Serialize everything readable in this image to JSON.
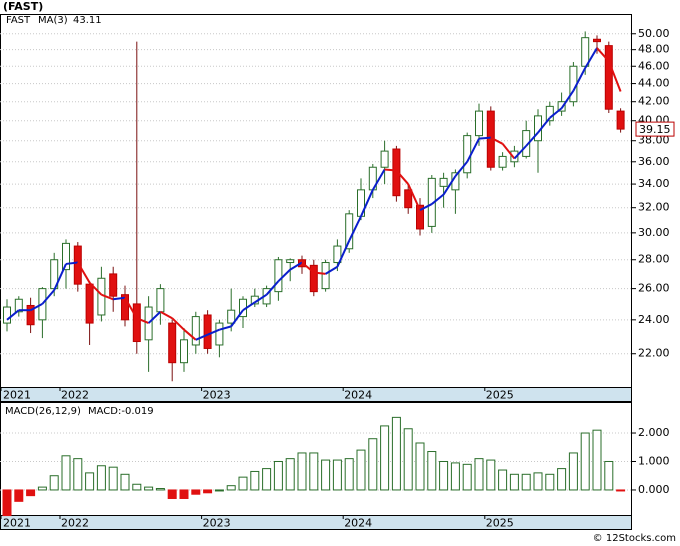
{
  "title": "(FAST)",
  "footer": "© 12Stocks.com",
  "chart_data": [
    {
      "type": "candlestick",
      "legend": {
        "symbol": "FAST",
        "ma_name": "MA(3)",
        "ma_value": 43.11
      },
      "categories": [
        "2021",
        null,
        null,
        null,
        null,
        "2022",
        null,
        null,
        null,
        null,
        null,
        null,
        null,
        null,
        null,
        null,
        null,
        "2023",
        null,
        null,
        null,
        null,
        null,
        null,
        null,
        null,
        null,
        null,
        null,
        "2024",
        null,
        null,
        null,
        null,
        null,
        null,
        null,
        null,
        null,
        null,
        null,
        "2025",
        null,
        null,
        null,
        null,
        null,
        null,
        null,
        null,
        null,
        null,
        null
      ],
      "open": [
        23.8,
        24.5,
        24.9,
        24.0,
        26.0,
        27.3,
        29.0,
        26.3,
        24.3,
        27.0,
        25.6,
        25.0,
        22.8,
        24.5,
        23.8,
        21.5,
        22.5,
        24.3,
        22.5,
        23.8,
        24.2,
        25.0,
        25.0,
        25.8,
        27.8,
        28.0,
        27.6,
        26.0,
        27.8,
        28.8,
        31.3,
        33.5,
        35.5,
        37.2,
        33.5,
        32.2,
        30.5,
        33.8,
        33.5,
        35.0,
        38.5,
        41.0,
        35.5,
        36.0,
        36.5,
        38.0,
        40.0,
        41.0,
        42.0,
        46.0,
        49.3,
        48.5,
        41.0
      ],
      "high": [
        25.3,
        25.5,
        25.4,
        26.1,
        28.5,
        29.5,
        29.3,
        26.5,
        27.5,
        27.5,
        26.2,
        49.0,
        25.5,
        26.3,
        24.0,
        23.5,
        24.5,
        24.6,
        24.0,
        26.0,
        25.5,
        26.0,
        26.2,
        28.2,
        28.1,
        28.3,
        28.0,
        28.0,
        29.5,
        31.8,
        34.5,
        35.8,
        38.0,
        37.5,
        34.0,
        32.8,
        34.8,
        35.0,
        35.3,
        38.8,
        41.8,
        41.5,
        36.9,
        37.5,
        40.0,
        41.2,
        42.0,
        43.0,
        46.5,
        50.3,
        49.8,
        49.0,
        41.3
      ],
      "low": [
        23.3,
        24.2,
        23.2,
        22.9,
        25.5,
        26.0,
        25.8,
        22.5,
        23.9,
        24.5,
        23.6,
        22.0,
        21.0,
        23.7,
        20.5,
        21.0,
        22.0,
        22.0,
        21.8,
        23.3,
        23.5,
        24.8,
        24.8,
        25.2,
        26.5,
        27.0,
        25.5,
        25.8,
        27.2,
        28.5,
        31.0,
        32.8,
        34.0,
        32.5,
        31.5,
        29.8,
        30.0,
        32.0,
        31.5,
        34.5,
        37.5,
        35.2,
        35.2,
        35.5,
        36.3,
        35.0,
        39.5,
        40.5,
        41.5,
        45.0,
        47.5,
        40.8,
        38.8
      ],
      "close": [
        24.8,
        25.3,
        23.7,
        26.0,
        28.0,
        29.2,
        26.3,
        23.8,
        26.7,
        25.5,
        24.0,
        22.7,
        24.8,
        26.0,
        21.5,
        22.8,
        24.2,
        22.3,
        23.8,
        24.6,
        25.3,
        25.5,
        26.0,
        28.0,
        28.0,
        27.5,
        25.8,
        27.8,
        29.0,
        31.5,
        33.5,
        35.5,
        37.0,
        33.0,
        32.0,
        30.3,
        34.5,
        34.5,
        35.0,
        38.5,
        41.0,
        35.5,
        36.5,
        37.0,
        39.0,
        40.5,
        41.5,
        42.0,
        46.0,
        49.5,
        49.0,
        41.2,
        39.15
      ],
      "ma_values": [
        24.0,
        24.6,
        24.6,
        25.0,
        25.9,
        27.7,
        27.8,
        26.4,
        25.6,
        25.3,
        25.4,
        24.1,
        23.8,
        24.5,
        24.1,
        23.4,
        22.8,
        23.1,
        23.4,
        23.6,
        24.6,
        25.1,
        25.6,
        26.5,
        27.3,
        27.8,
        27.1,
        27.0,
        27.5,
        29.4,
        31.3,
        33.5,
        35.3,
        35.2,
        34.0,
        31.8,
        32.3,
        33.1,
        34.7,
        36.0,
        38.2,
        38.3,
        37.7,
        36.3,
        37.5,
        38.8,
        40.3,
        41.3,
        43.2,
        45.8,
        48.2,
        46.6,
        43.11
      ],
      "up_color": "#2a6e2a",
      "down_color": "#e01010",
      "ma_up_color": "#0a1ecc",
      "ma_down_color": "#e01010",
      "log_scale": true,
      "ylim": [
        20.2,
        52.6
      ],
      "yticks": [
        {
          "value": 22,
          "label": "22.00"
        },
        {
          "value": 24,
          "label": "24.00"
        },
        {
          "value": 26,
          "label": "26.00"
        },
        {
          "value": 28,
          "label": "28.00"
        },
        {
          "value": 30,
          "label": "30.00"
        },
        {
          "value": 32,
          "label": "32.00"
        },
        {
          "value": 34,
          "label": "34.00"
        },
        {
          "value": 36,
          "label": "36.00"
        },
        {
          "value": 38,
          "label": "38.00"
        },
        {
          "value": 40,
          "label": "40.00"
        },
        {
          "value": 42,
          "label": "42.00"
        },
        {
          "value": 44,
          "label": "44.00"
        },
        {
          "value": 46,
          "label": "46.00"
        },
        {
          "value": 48,
          "label": "48.00"
        },
        {
          "value": 50,
          "label": "50.00"
        }
      ],
      "grid": true
    },
    {
      "type": "bar",
      "legend": {
        "name": "MACD(26,12,9)",
        "value_text": "MACD:-0.019"
      },
      "categories": [
        "2021",
        null,
        null,
        null,
        null,
        "2022",
        null,
        null,
        null,
        null,
        null,
        null,
        null,
        null,
        null,
        null,
        null,
        "2023",
        null,
        null,
        null,
        null,
        null,
        null,
        null,
        null,
        null,
        null,
        null,
        "2024",
        null,
        null,
        null,
        null,
        null,
        null,
        null,
        null,
        null,
        null,
        null,
        "2025",
        null,
        null,
        null,
        null,
        null,
        null,
        null,
        null,
        null,
        null,
        null
      ],
      "values": [
        -0.9,
        -0.4,
        -0.2,
        0.1,
        0.5,
        1.2,
        1.1,
        0.6,
        0.85,
        0.8,
        0.55,
        0.2,
        0.1,
        0.05,
        -0.3,
        -0.3,
        -0.15,
        -0.1,
        0,
        0.15,
        0.45,
        0.65,
        0.75,
        1.0,
        1.1,
        1.3,
        1.3,
        1.05,
        1.05,
        1.1,
        1.4,
        1.8,
        2.25,
        2.55,
        2.15,
        1.65,
        1.35,
        1.0,
        0.95,
        0.9,
        1.1,
        1.05,
        0.7,
        0.55,
        0.55,
        0.6,
        0.55,
        0.75,
        1.3,
        2.0,
        2.1,
        1.0,
        -0.019
      ],
      "up_color": "#2a6e2a",
      "down_color": "#e01010",
      "ylim": [
        -0.88,
        3.09
      ],
      "yticks": [
        {
          "value": 0,
          "label": "0.000"
        },
        {
          "value": 1,
          "label": "1.000"
        },
        {
          "value": 2,
          "label": "2.000"
        }
      ],
      "grid": true
    }
  ]
}
